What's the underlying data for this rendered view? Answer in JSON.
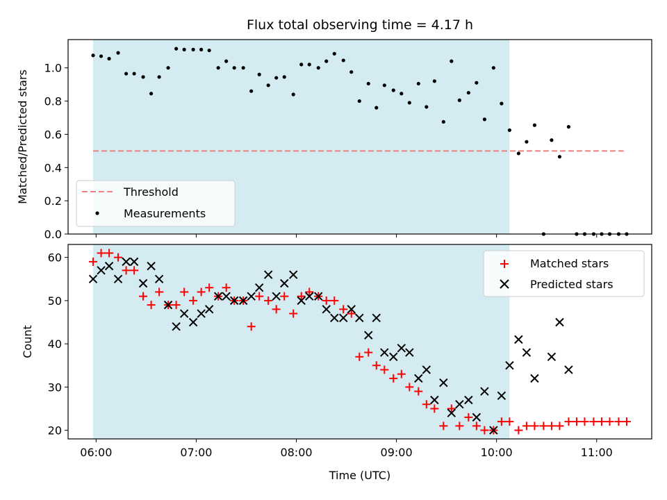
{
  "chart_data": [
    {
      "type": "scatter",
      "title": "Flux total observing time = 4.17 h",
      "ylabel": "Matched/Predicted stars",
      "xlabel": "",
      "x_ticks": [
        "06:00",
        "07:00",
        "08:00",
        "09:00",
        "10:00",
        "11:00"
      ],
      "y_ticks": [
        "0.0",
        "0.2",
        "0.4",
        "0.6",
        "0.8",
        "1.0"
      ],
      "xlim_hours": [
        5.72,
        11.55
      ],
      "ylim": [
        0,
        1.17
      ],
      "shaded_interval_hours": [
        5.97,
        10.13
      ],
      "shade_color": "#d3ebf1",
      "legend": {
        "position": "lower-left",
        "entries": [
          "Threshold",
          "Measurements"
        ]
      },
      "threshold": {
        "name": "Threshold",
        "value": 0.5,
        "x_start": 5.97,
        "x_end": 11.27,
        "color": "#f08080",
        "style": "dashed"
      },
      "series": [
        {
          "name": "Measurements",
          "color": "#000000",
          "marker": "dot",
          "points": [
            [
              5.97,
              1.075
            ],
            [
              6.05,
              1.07
            ],
            [
              6.13,
              1.055
            ],
            [
              6.22,
              1.09
            ],
            [
              6.3,
              0.965
            ],
            [
              6.38,
              0.965
            ],
            [
              6.47,
              0.945
            ],
            [
              6.55,
              0.845
            ],
            [
              6.63,
              0.945
            ],
            [
              6.72,
              1.0
            ],
            [
              6.8,
              1.115
            ],
            [
              6.88,
              1.11
            ],
            [
              6.97,
              1.11
            ],
            [
              7.05,
              1.11
            ],
            [
              7.13,
              1.105
            ],
            [
              7.22,
              1.0
            ],
            [
              7.3,
              1.04
            ],
            [
              7.38,
              1.0
            ],
            [
              7.47,
              1.0
            ],
            [
              7.55,
              0.86
            ],
            [
              7.63,
              0.96
            ],
            [
              7.72,
              0.895
            ],
            [
              7.8,
              0.94
            ],
            [
              7.88,
              0.945
            ],
            [
              7.97,
              0.84
            ],
            [
              8.05,
              1.02
            ],
            [
              8.13,
              1.02
            ],
            [
              8.22,
              1.0
            ],
            [
              8.3,
              1.04
            ],
            [
              8.38,
              1.085
            ],
            [
              8.47,
              1.045
            ],
            [
              8.55,
              0.975
            ],
            [
              8.63,
              0.8
            ],
            [
              8.72,
              0.905
            ],
            [
              8.8,
              0.76
            ],
            [
              8.88,
              0.895
            ],
            [
              8.97,
              0.865
            ],
            [
              9.05,
              0.845
            ],
            [
              9.13,
              0.79
            ],
            [
              9.22,
              0.905
            ],
            [
              9.3,
              0.765
            ],
            [
              9.38,
              0.92
            ],
            [
              9.47,
              0.675
            ],
            [
              9.55,
              1.04
            ],
            [
              9.63,
              0.805
            ],
            [
              9.72,
              0.85
            ],
            [
              9.8,
              0.91
            ],
            [
              9.88,
              0.69
            ],
            [
              9.97,
              1.0
            ],
            [
              10.05,
              0.785
            ],
            [
              10.13,
              0.625
            ],
            [
              10.22,
              0.485
            ],
            [
              10.3,
              0.555
            ],
            [
              10.38,
              0.655
            ],
            [
              10.47,
              0.0
            ],
            [
              10.55,
              0.565
            ],
            [
              10.63,
              0.465
            ],
            [
              10.72,
              0.645
            ],
            [
              10.8,
              0.0
            ],
            [
              10.88,
              0.0
            ],
            [
              10.97,
              0.0
            ],
            [
              11.05,
              0.0
            ],
            [
              11.13,
              0.0
            ],
            [
              11.22,
              0.0
            ],
            [
              11.3,
              0.0
            ]
          ]
        }
      ]
    },
    {
      "type": "scatter",
      "title": "",
      "ylabel": "Count",
      "xlabel": "Time (UTC)",
      "x_ticks": [
        "06:00",
        "07:00",
        "08:00",
        "09:00",
        "10:00",
        "11:00"
      ],
      "y_ticks": [
        "20",
        "30",
        "40",
        "50",
        "60"
      ],
      "xlim_hours": [
        5.72,
        11.55
      ],
      "ylim": [
        18,
        63
      ],
      "shaded_interval_hours": [
        5.97,
        10.13
      ],
      "shade_color": "#d3ebf1",
      "legend": {
        "position": "upper-right",
        "entries": [
          "Matched stars",
          "Predicted stars"
        ]
      },
      "series": [
        {
          "name": "Matched stars",
          "color": "#ff0000",
          "marker": "plus",
          "points": [
            [
              5.97,
              59
            ],
            [
              6.05,
              61
            ],
            [
              6.13,
              61
            ],
            [
              6.22,
              60
            ],
            [
              6.3,
              57
            ],
            [
              6.38,
              57
            ],
            [
              6.47,
              51
            ],
            [
              6.55,
              49
            ],
            [
              6.63,
              52
            ],
            [
              6.72,
              49
            ],
            [
              6.8,
              49
            ],
            [
              6.88,
              52
            ],
            [
              6.97,
              50
            ],
            [
              7.05,
              52
            ],
            [
              7.13,
              53
            ],
            [
              7.22,
              51
            ],
            [
              7.3,
              53
            ],
            [
              7.38,
              50
            ],
            [
              7.47,
              50
            ],
            [
              7.55,
              44
            ],
            [
              7.63,
              51
            ],
            [
              7.72,
              50
            ],
            [
              7.8,
              48
            ],
            [
              7.88,
              51
            ],
            [
              7.97,
              47
            ],
            [
              8.05,
              51
            ],
            [
              8.13,
              52
            ],
            [
              8.22,
              51
            ],
            [
              8.3,
              50
            ],
            [
              8.38,
              50
            ],
            [
              8.47,
              48
            ],
            [
              8.55,
              47
            ],
            [
              8.63,
              37
            ],
            [
              8.72,
              38
            ],
            [
              8.8,
              35
            ],
            [
              8.88,
              34
            ],
            [
              8.97,
              32
            ],
            [
              9.05,
              33
            ],
            [
              9.13,
              30
            ],
            [
              9.22,
              29
            ],
            [
              9.3,
              26
            ],
            [
              9.38,
              25
            ],
            [
              9.47,
              21
            ],
            [
              9.55,
              25
            ],
            [
              9.63,
              21
            ],
            [
              9.72,
              23
            ],
            [
              9.8,
              21
            ],
            [
              9.88,
              20
            ],
            [
              9.97,
              20
            ],
            [
              10.05,
              22
            ],
            [
              10.13,
              22
            ],
            [
              10.22,
              20
            ],
            [
              10.3,
              21
            ],
            [
              10.38,
              21
            ],
            [
              10.47,
              21
            ],
            [
              10.55,
              21
            ],
            [
              10.63,
              21
            ],
            [
              10.72,
              22
            ],
            [
              10.8,
              22
            ],
            [
              10.88,
              22
            ],
            [
              10.97,
              22
            ],
            [
              11.05,
              22
            ],
            [
              11.13,
              22
            ],
            [
              11.22,
              22
            ],
            [
              11.3,
              22
            ]
          ]
        },
        {
          "name": "Predicted stars",
          "color": "#000000",
          "marker": "x",
          "points": [
            [
              5.97,
              55
            ],
            [
              6.05,
              57
            ],
            [
              6.13,
              58
            ],
            [
              6.22,
              55
            ],
            [
              6.3,
              59
            ],
            [
              6.38,
              59
            ],
            [
              6.47,
              54
            ],
            [
              6.55,
              58
            ],
            [
              6.63,
              55
            ],
            [
              6.72,
              49
            ],
            [
              6.8,
              44
            ],
            [
              6.88,
              47
            ],
            [
              6.97,
              45
            ],
            [
              7.05,
              47
            ],
            [
              7.13,
              48
            ],
            [
              7.22,
              51
            ],
            [
              7.3,
              51
            ],
            [
              7.38,
              50
            ],
            [
              7.47,
              50
            ],
            [
              7.55,
              51
            ],
            [
              7.63,
              53
            ],
            [
              7.72,
              56
            ],
            [
              7.8,
              51
            ],
            [
              7.88,
              54
            ],
            [
              7.97,
              56
            ],
            [
              8.05,
              50
            ],
            [
              8.13,
              51
            ],
            [
              8.22,
              51
            ],
            [
              8.3,
              48
            ],
            [
              8.38,
              46
            ],
            [
              8.47,
              46
            ],
            [
              8.55,
              48
            ],
            [
              8.63,
              46
            ],
            [
              8.72,
              42
            ],
            [
              8.8,
              46
            ],
            [
              8.88,
              38
            ],
            [
              8.97,
              37
            ],
            [
              9.05,
              39
            ],
            [
              9.13,
              38
            ],
            [
              9.22,
              32
            ],
            [
              9.3,
              34
            ],
            [
              9.38,
              27
            ],
            [
              9.47,
              31
            ],
            [
              9.55,
              24
            ],
            [
              9.63,
              26
            ],
            [
              9.72,
              27
            ],
            [
              9.8,
              23
            ],
            [
              9.88,
              29
            ],
            [
              9.97,
              20
            ],
            [
              10.05,
              28
            ],
            [
              10.13,
              35
            ],
            [
              10.22,
              41
            ],
            [
              10.3,
              38
            ],
            [
              10.38,
              32
            ],
            [
              10.55,
              37
            ],
            [
              10.63,
              45
            ],
            [
              10.72,
              34
            ]
          ]
        }
      ]
    }
  ]
}
